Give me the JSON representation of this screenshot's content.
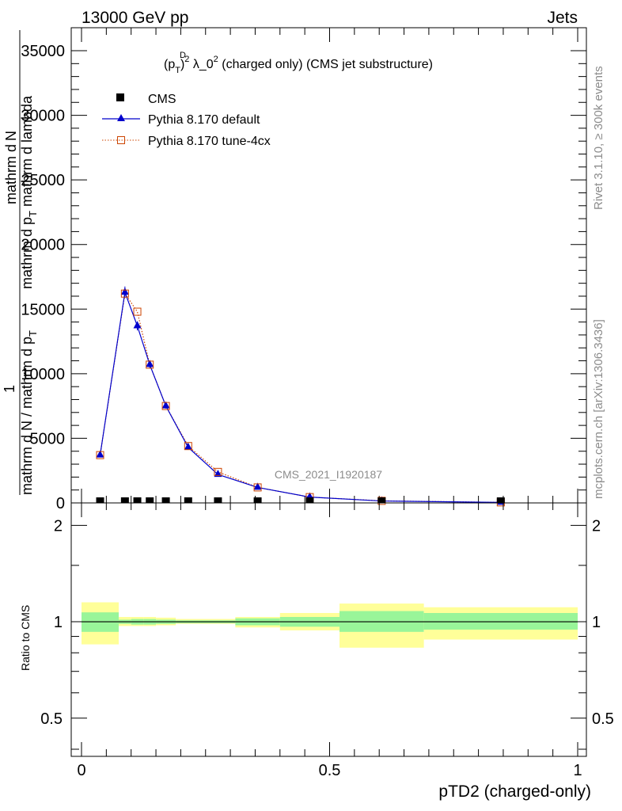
{
  "header": {
    "left": "13000 GeV pp",
    "right": "Jets"
  },
  "side_labels": {
    "rivet": "Rivet 3.1.10, ≥ 300k events",
    "mcplots": "mcplots.cern.ch [arXiv:1306.3436]"
  },
  "watermark": "CMS_2021_I1920187",
  "plot_title": {
    "prefix": "(p",
    "sup_d": "D",
    "sub_t": "T",
    "mid": ")",
    "sup_2": "2",
    "lambda": " λ_0",
    "sup_2b": "2",
    "suffix": " (charged only) (CMS jet substructure)"
  },
  "y_label_main": {
    "numerator_one": "1",
    "line_a": "mathrm d N / mathrm d p",
    "line_a_sub": "T",
    "line_b": "mathrm d p",
    "line_b_sub": "T",
    "line_b_rest": " mathrm d lambda",
    "top": "mathrm d",
    "top_n": "N"
  },
  "y_label_ratio": "Ratio to CMS",
  "x_label": "pTD2 (charged-only)",
  "legend": {
    "cms": "CMS",
    "default": "Pythia 8.170 default",
    "tune": "Pythia 8.170 tune-4cx"
  },
  "colors": {
    "cms": "#000000",
    "default": "#0000cc",
    "tune": "#cc4400",
    "band_inner": "#99f599",
    "band_outer": "#ffff99"
  },
  "chart_data": [
    {
      "type": "line",
      "panel": "main",
      "xlim": [
        0,
        1
      ],
      "ylim": [
        0,
        35000
      ],
      "y_ticks": [
        0,
        5000,
        10000,
        15000,
        20000,
        25000,
        30000,
        35000
      ],
      "y_tick_labels": [
        "0",
        "5000",
        "10000",
        "15000",
        "20000",
        "25000",
        "30000",
        "35000"
      ],
      "x_ticks": [
        0,
        0.5,
        1
      ],
      "x_tick_labels": [
        "0",
        "0.5",
        "1"
      ],
      "bins": [
        [
          0.0,
          0.075
        ],
        [
          0.075,
          0.1
        ],
        [
          0.1,
          0.125
        ],
        [
          0.125,
          0.15
        ],
        [
          0.15,
          0.19
        ],
        [
          0.19,
          0.24
        ],
        [
          0.24,
          0.31
        ],
        [
          0.31,
          0.4
        ],
        [
          0.4,
          0.52
        ],
        [
          0.52,
          0.69
        ],
        [
          0.69,
          1.0
        ]
      ],
      "series": [
        {
          "name": "CMS",
          "x": [
            0.0375,
            0.0875,
            0.1125,
            0.1375,
            0.17,
            0.215,
            0.275,
            0.355,
            0.46,
            0.605,
            0.845
          ],
          "values": [
            0.5,
            2,
            2.4,
            1.9,
            1.4,
            1.0,
            0.6,
            0.3,
            0.1,
            0.05,
            0.01
          ]
        },
        {
          "name": "Pythia 8.170 default",
          "x": [
            0.0375,
            0.0875,
            0.1125,
            0.1375,
            0.17,
            0.215,
            0.275,
            0.355,
            0.46,
            0.605,
            0.845
          ],
          "values": [
            3700,
            16300,
            13700,
            10700,
            7500,
            4300,
            2200,
            1200,
            450,
            150,
            40
          ],
          "y_error": [
            100,
            450,
            350,
            300,
            200,
            120,
            70,
            40,
            20,
            8,
            3
          ]
        },
        {
          "name": "Pythia 8.170 tune-4cx",
          "x": [
            0.0375,
            0.0875,
            0.1125,
            0.1375,
            0.17,
            0.215,
            0.275,
            0.355,
            0.46,
            0.605,
            0.845
          ],
          "values": [
            3700,
            16200,
            14800,
            10700,
            7500,
            4400,
            2400,
            1200,
            450,
            160,
            40
          ]
        }
      ]
    },
    {
      "type": "area",
      "panel": "ratio",
      "title": "",
      "ylabel": "Ratio to CMS",
      "xlabel": "pTD2 (charged-only)",
      "xlim": [
        0,
        1
      ],
      "y_log": true,
      "ylim": [
        0.38,
        2.35
      ],
      "y_ticks": [
        0.5,
        1,
        2
      ],
      "y_tick_labels": [
        "0.5",
        "1",
        "2"
      ],
      "x_ticks": [
        0,
        0.5,
        1
      ],
      "x_tick_labels": [
        "0",
        "0.5",
        "1"
      ],
      "bins": [
        [
          0.0,
          0.075
        ],
        [
          0.075,
          0.1
        ],
        [
          0.1,
          0.125
        ],
        [
          0.125,
          0.15
        ],
        [
          0.15,
          0.19
        ],
        [
          0.19,
          0.24
        ],
        [
          0.24,
          0.31
        ],
        [
          0.31,
          0.4
        ],
        [
          0.4,
          0.52
        ],
        [
          0.52,
          0.69
        ],
        [
          0.69,
          1.0
        ]
      ],
      "stat_band": [
        [
          0.93,
          1.07
        ],
        [
          0.985,
          1.015
        ],
        [
          0.98,
          1.02
        ],
        [
          0.98,
          1.02
        ],
        [
          0.985,
          1.015
        ],
        [
          0.99,
          1.01
        ],
        [
          0.99,
          1.01
        ],
        [
          0.975,
          1.025
        ],
        [
          0.965,
          1.035
        ],
        [
          0.93,
          1.08
        ],
        [
          0.945,
          1.065
        ]
      ],
      "total_band": [
        [
          0.85,
          1.15
        ],
        [
          0.97,
          1.035
        ],
        [
          0.97,
          1.035
        ],
        [
          0.97,
          1.035
        ],
        [
          0.975,
          1.03
        ],
        [
          0.985,
          1.02
        ],
        [
          0.985,
          1.02
        ],
        [
          0.96,
          1.035
        ],
        [
          0.94,
          1.065
        ],
        [
          0.83,
          1.14
        ],
        [
          0.88,
          1.11
        ]
      ]
    }
  ]
}
